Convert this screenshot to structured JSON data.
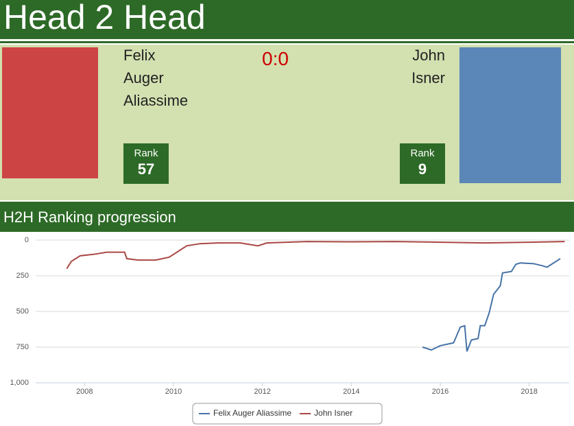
{
  "header": {
    "title": "Head 2 Head"
  },
  "score": "0:0",
  "players": [
    {
      "name_lines": [
        "Felix",
        "Auger",
        "Aliassime"
      ],
      "rank_label": "Rank",
      "rank": 57
    },
    {
      "name_lines": [
        "John",
        "Isner"
      ],
      "rank_label": "Rank",
      "rank": 9
    }
  ],
  "section_title": "H2H Ranking progression",
  "chart_data": {
    "type": "line",
    "y_inverted": true,
    "grid": true,
    "legend": "bottom",
    "xlim": [
      2006.9,
      2018.9
    ],
    "xticks": [
      2008,
      2010,
      2012,
      2014,
      2016,
      2018
    ],
    "ylim": [
      0,
      1000
    ],
    "yticks": [
      0,
      250,
      500,
      750,
      {
        "value": 1000,
        "label": "1,000"
      }
    ],
    "series": [
      {
        "name": "Felix Auger Aliassime",
        "color": "#4572a7",
        "x": [
          2015.6,
          2015.8,
          2016.0,
          2016.3,
          2016.45,
          2016.55,
          2016.6,
          2016.7,
          2016.85,
          2016.9,
          2017.0,
          2017.1,
          2017.2,
          2017.3,
          2017.35,
          2017.4,
          2017.6,
          2017.7,
          2017.8,
          2018.1,
          2018.3,
          2018.4,
          2018.5,
          2018.7
        ],
        "values": [
          750,
          770,
          740,
          720,
          610,
          600,
          780,
          700,
          690,
          600,
          600,
          510,
          380,
          340,
          320,
          230,
          220,
          170,
          160,
          165,
          180,
          190,
          170,
          130
        ]
      },
      {
        "name": "John Isner",
        "color": "#aa4643",
        "x": [
          2007.6,
          2007.7,
          2007.9,
          2008.2,
          2008.5,
          2008.9,
          2008.95,
          2009.2,
          2009.6,
          2009.9,
          2010.1,
          2010.3,
          2010.6,
          2011.0,
          2011.5,
          2011.9,
          2012.1,
          2013.0,
          2014.0,
          2015.0,
          2016.0,
          2017.0,
          2018.0,
          2018.8
        ],
        "values": [
          200,
          150,
          110,
          100,
          85,
          85,
          130,
          140,
          140,
          120,
          80,
          40,
          25,
          20,
          20,
          40,
          20,
          10,
          12,
          10,
          15,
          20,
          15,
          10
        ]
      }
    ]
  }
}
